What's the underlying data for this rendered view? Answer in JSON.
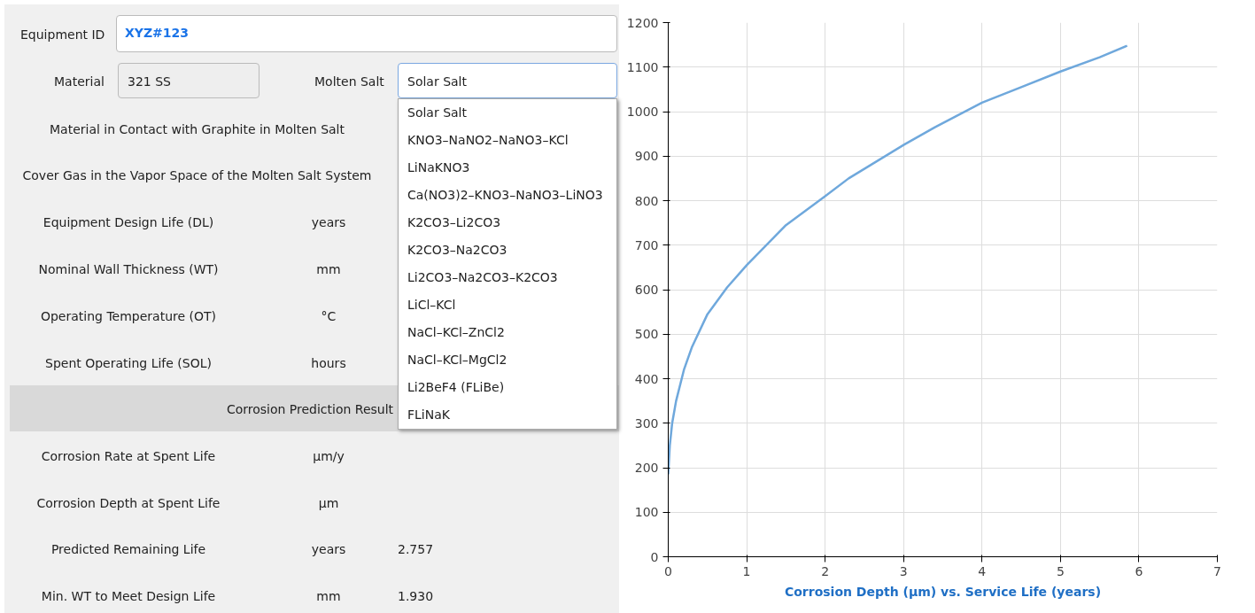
{
  "chart_data": [
    {
      "type": "other",
      "annotations": [
        "Equipment ID",
        "XYZ#123",
        "Material",
        "321 SS",
        "Molten Salt",
        "Solar Salt",
        "Material in Contact with Graphite in Molten Salt",
        "Cover Gas in the Vapor Space of the Molten Salt System",
        "Equipment Design Life (DL)",
        "years",
        "Nominal Wall Thickness (WT)",
        "mm",
        "Operating Temperature (OT)",
        "°C",
        "Spent Operating Life (SOL)",
        "hours",
        "Corrosion Prediction Result",
        "Corrosion Rate at Spent Life",
        "µm/y",
        "Corrosion Depth at Spent Life",
        "µm",
        "Predicted Remaining Life",
        "years",
        "2.757",
        "Min. WT to Meet Design Life",
        "mm",
        "1.930",
        "Solar Salt",
        "KNO3–NaNO2–NaNO3–KCl",
        "LiNaKNO3",
        "Ca(NO3)2–KNO3–NaNO3–LiNO3",
        "K2CO3–Li2CO3",
        "K2CO3–Na2CO3",
        "Li2CO3–Na2CO3–K2CO3",
        "LiCl–KCl",
        "NaCl–KCl–ZnCl2",
        "NaCl–KCl–MgCl2",
        "Li2BeF4 (FLiBe)",
        "FLiNaK"
      ]
    },
    {
      "type": "line",
      "title": "Corrosion Depth (µm) vs. Service Life (years)",
      "x": [
        0,
        0.02,
        0.05,
        0.1,
        0.2,
        0.3,
        0.5,
        0.75,
        1,
        1.5,
        2,
        2.3,
        3,
        3.4,
        4,
        4.5,
        5,
        5.5,
        5.85
      ],
      "series": [
        {
          "color": "#6fa8dc",
          "values": [
            185,
            250,
            300,
            350,
            420,
            470,
            545,
            605,
            655,
            745,
            810,
            850,
            925,
            965,
            1020,
            1055,
            1090,
            1122,
            1148
          ]
        }
      ],
      "xlim": [
        0,
        7
      ],
      "xticks": [
        0,
        1,
        2,
        3,
        4,
        5,
        6,
        7
      ],
      "ylim": [
        0,
        1200
      ],
      "yticks": [
        0,
        100,
        200,
        300,
        400,
        500,
        600,
        700,
        800,
        900,
        1000,
        1100,
        1200
      ],
      "grid": true
    }
  ]
}
